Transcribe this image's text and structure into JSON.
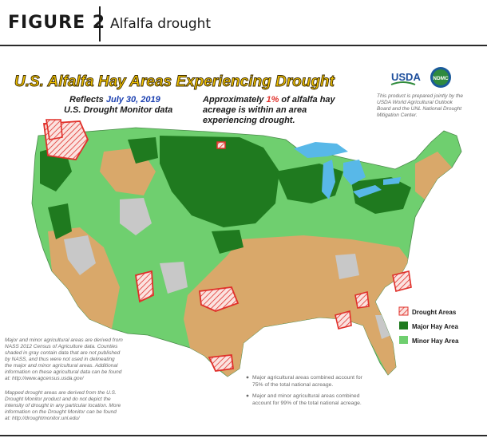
{
  "figure": {
    "label": "FIGURE 2",
    "caption": "Alfalfa drought"
  },
  "map": {
    "title": "U.S. Alfalfa Hay Areas Experiencing Drought",
    "reflects_label": "Reflects",
    "reflects_date": "July 30, 2019",
    "source_line": "U.S. Drought Monitor data",
    "stat_line1_pre": "Approximately ",
    "stat_pct": "1%",
    "stat_line1_post": " of alfalfa hay",
    "stat_line2": "acreage is within an area",
    "stat_line3": "experiencing drought.",
    "logos": {
      "usda": "USDA",
      "ndmc": "NDMC"
    },
    "credit_lines": [
      "This product is prepared jointly by the",
      "USDA World Agricultural Outlook",
      "Board and the UNL National Drought",
      "Mitigation Center."
    ],
    "legend": {
      "drought": "Drought Areas",
      "major": "Major Hay Area",
      "minor": "Minor Hay Area"
    },
    "notes_left_1": [
      "Major and minor agricultural areas are derived from",
      "NASS 2012 Census of Agriculture data.  Counties",
      "shaded in gray contain data that are not published",
      "by NASS, and thus were not used in delineating",
      "the major and minor agricultural areas.  Additional",
      "information on these agricultural data can be found",
      "at:  http://www.agcensus.usda.gov/"
    ],
    "notes_left_2": [
      "Mapped drought areas are derived from the U.S.",
      "Drought Monitor product and do not depict the",
      "intensity of drought in any particular location.  More",
      "information on the Drought Monitor can be found",
      "at:  http://droughtmonitor.unl.edu/"
    ],
    "notes_right": [
      [
        "Major agricultural areas combined account for",
        "75% of the total national acreage."
      ],
      [
        "Major and minor agricultural areas combined",
        "account for 99% of the total national acreage."
      ]
    ],
    "colors": {
      "major": "#1f7a1f",
      "minor": "#6fcf6f",
      "tan": "#d9a86a",
      "gray": "#c8c8c8",
      "water": "#58b8e8",
      "drought": "#e0302a",
      "title_fill": "#f2c200",
      "date_blue": "#1a3fb0"
    }
  }
}
